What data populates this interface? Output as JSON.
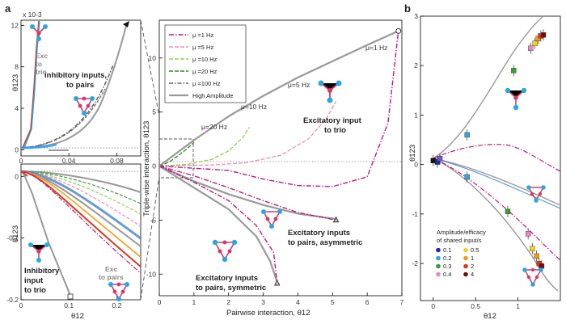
{
  "panel_labels": {
    "a": "a",
    "b": "b"
  },
  "chart_data": [
    {
      "id": "main",
      "type": "line",
      "xlabel": "Pairwise interaction,  θ12",
      "ylabel": "Triple-wise interaction,  θ123",
      "xlim": [
        0,
        7
      ],
      "ylim": [
        -12,
        13.5
      ],
      "x_ticks": [
        0,
        1,
        2,
        3,
        4,
        5,
        6,
        7
      ],
      "y_ticks": [
        -10,
        -5,
        0,
        5,
        10
      ],
      "legend": [
        {
          "label": "μ =1 Hz",
          "color": "#c2187a",
          "dash": "6,2,1.5,2"
        },
        {
          "label": "μ =5 Hz",
          "color": "#f08db5",
          "dash": "5,2"
        },
        {
          "label": "μ =10 Hz",
          "color": "#8fd14f",
          "dash": "5,2"
        },
        {
          "label": "μ =20 Hz",
          "color": "#2e8b22",
          "dash": "5,2"
        },
        {
          "label": "μ =100 Hz",
          "color": "#666666",
          "dash": "5,2,1.5,2"
        },
        {
          "label": "High Amplitude",
          "color": "#999999",
          "dash": ""
        }
      ],
      "curve_labels": [
        "μ=1 Hz",
        "μ=5 Hz",
        "μ=10 Hz",
        "μ=20 Hz"
      ],
      "annotations": [
        "Excitatory input",
        "to trio",
        "Excitatory inputs",
        "to pairs, asymmetric",
        "Excitatory inputs",
        "to pairs, symmetric"
      ],
      "series": [
        {
          "name": "High Amplitude (trio)",
          "x": [
            0,
            0.5,
            1.0,
            2.0,
            3.0,
            4.0,
            5.0,
            6.0,
            6.9
          ],
          "y": [
            0,
            1.2,
            2.4,
            4.6,
            6.5,
            8.2,
            9.7,
            11.2,
            12.5
          ]
        },
        {
          "name": "μ =20 Hz",
          "x": [
            0,
            0.3,
            0.6,
            0.8,
            0.9,
            1.0
          ],
          "y": [
            0,
            0.4,
            1.1,
            1.6,
            1.9,
            2.2
          ]
        },
        {
          "name": "μ =10 Hz",
          "x": [
            0,
            0.8,
            1.5,
            2.0,
            2.4,
            2.6
          ],
          "y": [
            0,
            0.15,
            0.6,
            1.4,
            2.6,
            3.6
          ]
        },
        {
          "name": "μ =5 Hz",
          "x": [
            0,
            1.5,
            2.5,
            3.5,
            4.3,
            4.8,
            5.1
          ],
          "y": [
            0,
            0.1,
            0.3,
            1.0,
            2.5,
            4.3,
            6.0
          ]
        },
        {
          "name": "μ =1 Hz (trio)",
          "x": [
            0,
            2,
            3,
            4,
            5,
            6,
            6.6,
            6.9
          ],
          "y": [
            0,
            -0.4,
            -1.2,
            -1.8,
            -1.9,
            -1.0,
            4.0,
            12.5
          ]
        },
        {
          "name": "asymmetric pairs, high amp.",
          "x": [
            0,
            1,
            2,
            3,
            4,
            5.1
          ],
          "y": [
            0,
            -1.4,
            -2.6,
            -3.6,
            -4.4,
            -4.9
          ]
        },
        {
          "name": "asymmetric pairs, μ=1 Hz",
          "x": [
            0,
            1,
            2,
            3,
            4,
            5.1
          ],
          "y": [
            0,
            -0.9,
            -2.0,
            -3.2,
            -4.3,
            -5.0
          ]
        },
        {
          "name": "symmetric pairs, high amp.",
          "x": [
            0,
            1,
            2,
            2.8,
            3.2,
            3.4
          ],
          "y": [
            0,
            -2.0,
            -4.0,
            -6.5,
            -8.8,
            -10.7
          ]
        },
        {
          "name": "symmetric pairs, μ=1 Hz",
          "x": [
            0,
            1,
            2,
            2.8,
            3.3,
            3.4
          ],
          "y": [
            0,
            -1.5,
            -3.2,
            -5.5,
            -8.0,
            -10.8
          ]
        }
      ]
    },
    {
      "id": "inset_top",
      "type": "line",
      "xlabel": "",
      "ylabel": "θ123",
      "scale_label": "x 10-3",
      "xlim": [
        0,
        0.1
      ],
      "ylim": [
        -0.6,
        12.5
      ],
      "x_ticks": [
        0,
        0.04,
        0.08
      ],
      "y_ticks": [
        0,
        4,
        8,
        12
      ],
      "annotations": [
        "Inhibitory inputs,",
        "to pairs",
        "Exc",
        "to",
        "trio"
      ]
    },
    {
      "id": "inset_bottom",
      "type": "line",
      "xlabel": "θ12",
      "ylabel": "θ123",
      "xlim": [
        0,
        0.25
      ],
      "ylim": [
        -0.2,
        0.02
      ],
      "x_ticks": [
        0,
        0.1,
        0.2
      ],
      "y_ticks": [
        -0.2,
        -0.1,
        0
      ],
      "annotations": [
        "Inhibitory",
        "input",
        "to trio",
        "Exc",
        "to pairs"
      ]
    },
    {
      "id": "panel_b",
      "type": "scatter",
      "xlabel": "θ12",
      "ylabel": "θ123",
      "xlim": [
        -0.15,
        1.5
      ],
      "ylim": [
        -2.75,
        3.0
      ],
      "x_ticks": [
        0,
        0.5,
        1
      ],
      "y_ticks": [
        -2,
        -1,
        0,
        1,
        2,
        3
      ],
      "legend_title": [
        "Amplitude/efficacy",
        "of shared input/s"
      ],
      "legend": [
        {
          "label": "0.1",
          "color": "#1f2aa6"
        },
        {
          "label": "0.2",
          "color": "#29a8e0"
        },
        {
          "label": "0.3",
          "color": "#3a9c3a"
        },
        {
          "label": "0.4",
          "color": "#e78ac3"
        },
        {
          "label": "0.5",
          "color": "#f2d21b"
        },
        {
          "label": "1",
          "color": "#f39c12"
        },
        {
          "label": "2",
          "color": "#d63a1a"
        },
        {
          "label": "4",
          "color": "#7a0a0a"
        }
      ],
      "points": [
        {
          "x": 0.05,
          "y": 0.05,
          "color": "#1f2aa6"
        },
        {
          "x": 0.08,
          "y": 0.12,
          "color": "#6a5acd"
        },
        {
          "x": 0.4,
          "y": 0.6,
          "color": "#29a8e0"
        },
        {
          "x": 0.4,
          "y": -0.25,
          "color": "#29a8e0"
        },
        {
          "x": 0.95,
          "y": 1.9,
          "color": "#3a9c3a"
        },
        {
          "x": 0.88,
          "y": -0.95,
          "color": "#3a9c3a"
        },
        {
          "x": 1.15,
          "y": 2.35,
          "color": "#e78ac3"
        },
        {
          "x": 1.12,
          "y": -1.4,
          "color": "#e78ac3"
        },
        {
          "x": 1.2,
          "y": 2.45,
          "color": "#f2d21b"
        },
        {
          "x": 1.17,
          "y": -1.7,
          "color": "#f2d21b"
        },
        {
          "x": 1.24,
          "y": 2.55,
          "color": "#f39c12"
        },
        {
          "x": 1.22,
          "y": -1.85,
          "color": "#f39c12"
        },
        {
          "x": 1.27,
          "y": 2.6,
          "color": "#d63a1a"
        },
        {
          "x": 1.25,
          "y": -2.0,
          "color": "#d63a1a"
        },
        {
          "x": 1.3,
          "y": 2.62,
          "color": "#7a0a0a"
        },
        {
          "x": 1.28,
          "y": -2.05,
          "color": "#7a0a0a"
        },
        {
          "x": 0.0,
          "y": 0.08,
          "color": "#111111"
        }
      ]
    }
  ]
}
